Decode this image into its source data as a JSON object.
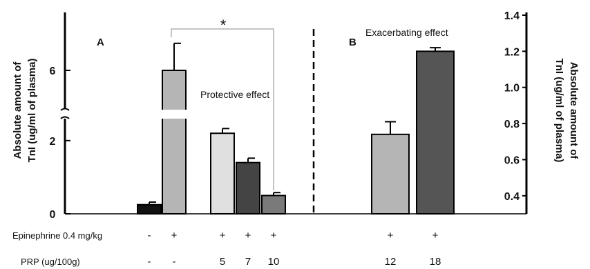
{
  "chart_data": [
    {
      "panel": "A",
      "type": "bar",
      "ylabel": "Absolute amount of TnI (ug/ml of plasma)",
      "yticks": [
        "0",
        "2",
        "6"
      ],
      "ylim_lower": [
        0,
        2.6
      ],
      "ylim_upper": [
        5,
        7.5
      ],
      "axis_break": true,
      "annotation": "Protective effect",
      "significance": "*",
      "bars": [
        {
          "epinephrine": "-",
          "prp": "-",
          "value": 0.25,
          "error": 0.07,
          "color": "#111111"
        },
        {
          "epinephrine": "+",
          "prp": "-",
          "value": 6.0,
          "error": 0.7,
          "color": "#b5b5b5"
        },
        {
          "epinephrine": "+",
          "prp": "5",
          "value": 2.2,
          "error": 0.13,
          "color": "#e0e0e0"
        },
        {
          "epinephrine": "+",
          "prp": "7",
          "value": 1.4,
          "error": 0.12,
          "color": "#444444"
        },
        {
          "epinephrine": "+",
          "prp": "10",
          "value": 0.5,
          "error": 0.08,
          "color": "#7a7a7a"
        }
      ]
    },
    {
      "panel": "B",
      "type": "bar",
      "ylabel": "Absolute amount of TnI (ug/ml of plasma)",
      "yticks": [
        "0.4",
        "0.6",
        "0.8",
        "1.0",
        "1.2",
        "1.4"
      ],
      "ylim": [
        0.3,
        1.4
      ],
      "annotation": "Exacerbating effect",
      "bars": [
        {
          "epinephrine": "+",
          "prp": "12",
          "value": 0.74,
          "error": 0.07,
          "color": "#b5b5b5"
        },
        {
          "epinephrine": "+",
          "prp": "18",
          "value": 1.2,
          "error": 0.02,
          "color": "#555555"
        }
      ]
    }
  ],
  "row_labels": {
    "epinephrine": "Epinephrine 0.4 mg/kg",
    "prp": "PRP (ug/100g)"
  },
  "panel_labels": {
    "a": "A",
    "b": "B"
  },
  "annotations": {
    "protective": "Protective effect",
    "exacerbating": "Exacerbating effect",
    "significance": "*"
  },
  "left_ylabel": [
    "Absolute amount of",
    "TnI (ug/ml of plasma)"
  ],
  "right_ylabel": [
    "Absolute amount of",
    "TnI (ug/ml of plasma)"
  ]
}
